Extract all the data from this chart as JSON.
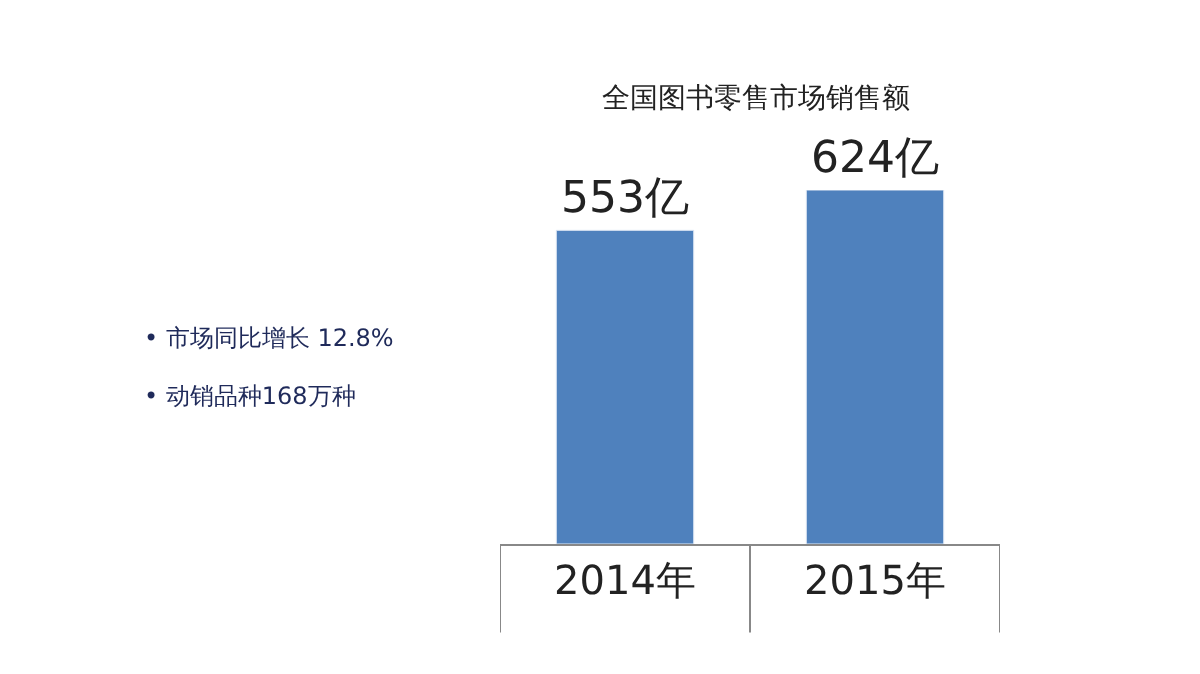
{
  "chart_data": {
    "type": "bar",
    "title": "全国图书零售市场销售额",
    "categories": [
      "2014年",
      "2015年"
    ],
    "values": [
      553,
      624
    ],
    "value_labels": [
      "553亿",
      "624亿"
    ],
    "color": "#4f81bd",
    "annotations": [
      "• 市场同比增长 12.8%",
      "• 动销品种168万种"
    ]
  }
}
